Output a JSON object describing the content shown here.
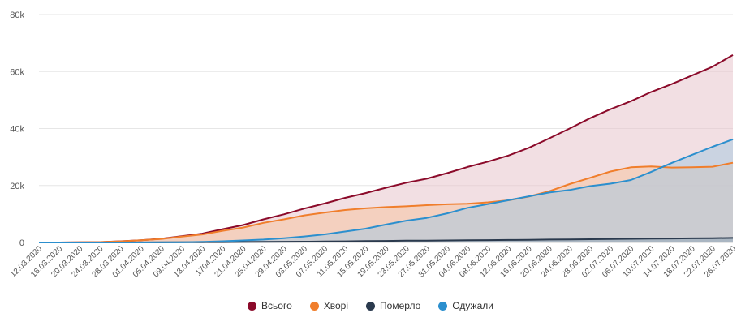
{
  "chart_data": {
    "type": "area",
    "title": "",
    "xlabel": "",
    "ylabel": "",
    "ylim": [
      0,
      80000
    ],
    "yticks": [
      0,
      20000,
      40000,
      60000,
      80000
    ],
    "ytick_labels": [
      "0",
      "20k",
      "40k",
      "60k",
      "80k"
    ],
    "grid": true,
    "legend_position": "bottom-center",
    "x_ticks": [
      "12.03.2020",
      "16.03.2020",
      "20.03.2020",
      "24.03.2020",
      "28.03.2020",
      "01.04.2020",
      "05.04.2020",
      "09.04.2020",
      "13.04.2020",
      "1704.2020",
      "21.04.2020",
      "25.04.2020",
      "29.04.2020",
      "03.05.2020",
      "07.05.2020",
      "11.05.2020",
      "15.05.2020",
      "19.05.2020",
      "23.05.2020",
      "27.05.2020",
      "31.05.2020",
      "04.06.2020",
      "08.06.2020",
      "12.06.2020",
      "16.06.2020",
      "20.06.2020",
      "24.06.2020",
      "28.06.2020",
      "02.07.2020",
      "06.07.2020",
      "10.07.2020",
      "14.07.2020",
      "18.07.2020",
      "22.07.2020",
      "26.07.2020"
    ],
    "series": [
      {
        "name": "Всього",
        "color": "#8b0a2a",
        "fill": "#e8c4cc",
        "values": [
          3,
          14,
          47,
          156,
          418,
          804,
          1319,
          2203,
          3102,
          4662,
          6125,
          8125,
          9866,
          11913,
          13691,
          15648,
          17330,
          19230,
          20986,
          22382,
          24340,
          26514,
          28381,
          30506,
          33234,
          36560,
          40008,
          43628,
          46763,
          49607,
          52843,
          55607,
          58621,
          61700,
          65792
        ]
      },
      {
        "name": "Хворі",
        "color": "#f07e2c",
        "fill": "#f5c3a2",
        "values": [
          3,
          14,
          45,
          150,
          400,
          770,
          1240,
          2050,
          2830,
          4100,
          5250,
          6900,
          8100,
          9500,
          10500,
          11400,
          12000,
          12400,
          12700,
          13100,
          13400,
          13600,
          14100,
          14800,
          16100,
          18000,
          20500,
          22700,
          24900,
          26400,
          26700,
          26300,
          26400,
          26600,
          28000
        ]
      },
      {
        "name": "Померло",
        "color": "#2b3a4e",
        "fill": "#6f7684",
        "values": [
          0,
          0,
          1,
          4,
          11,
          21,
          36,
          61,
          82,
          127,
          164,
          209,
          257,
          297,
          350,
          405,
          480,
          548,
          617,
          658,
          709,
          767,
          812,
          884,
          943,
          1017,
          1075,
          1132,
          1213,
          1278,
          1339,
          1389,
          1440,
          1514,
          1582
        ]
      },
      {
        "name": "Одужали",
        "color": "#2b8fce",
        "fill": "#a9c9e0",
        "values": [
          0,
          0,
          1,
          2,
          7,
          13,
          43,
          92,
          190,
          435,
          711,
          1016,
          1509,
          2116,
          2841,
          3843,
          4850,
          6282,
          7669,
          8624,
          10231,
          12147,
          13469,
          14822,
          16191,
          17543,
          18433,
          19796,
          20650,
          21929,
          24804,
          27918,
          30781,
          33586,
          36210
        ]
      }
    ]
  }
}
